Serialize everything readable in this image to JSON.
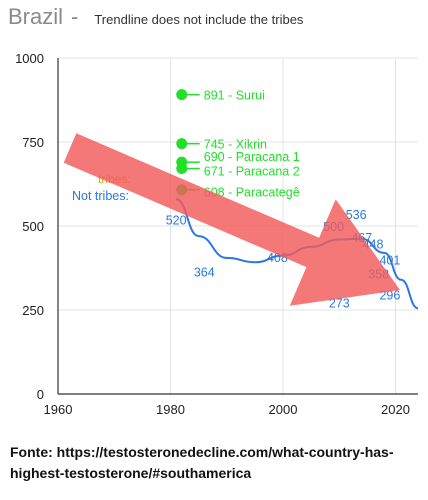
{
  "chart_data": {
    "type": "scatter",
    "title": "Brazil",
    "subtitle": "Trendline does not include the tribes",
    "xlim": [
      1960,
      2024
    ],
    "ylim": [
      0,
      1000
    ],
    "x_ticks": [
      1960,
      1980,
      2000,
      2020
    ],
    "y_ticks": [
      0,
      250,
      500,
      750,
      1000
    ],
    "grid": true,
    "series": [
      {
        "name": "tribes:",
        "color": "#22e02a",
        "points": [
          {
            "x": 1982,
            "y": 891,
            "label": "891 - Surui"
          },
          {
            "x": 1982,
            "y": 745,
            "label": "745 - Xikrin"
          },
          {
            "x": 1982,
            "y": 690,
            "label": "690 - Paracana 1"
          },
          {
            "x": 1982,
            "y": 671,
            "label": "671 - Paracana 2"
          },
          {
            "x": 1982,
            "y": 608,
            "label": "608 - Paracategê"
          }
        ]
      },
      {
        "name": "Not tribes:",
        "color": "#2a78e0",
        "points": [
          {
            "x": 1981,
            "y": 520,
            "label": "520"
          },
          {
            "x": 1986,
            "y": 364,
            "label": "364"
          },
          {
            "x": 1999,
            "y": 408,
            "label": "408"
          },
          {
            "x": 2009,
            "y": 500,
            "label": "500"
          },
          {
            "x": 2013,
            "y": 536,
            "label": "536"
          },
          {
            "x": 2014,
            "y": 467,
            "label": "467"
          },
          {
            "x": 2016,
            "y": 448,
            "label": "448"
          },
          {
            "x": 2019,
            "y": 401,
            "label": "401"
          },
          {
            "x": 2017,
            "y": 358,
            "label": "358"
          },
          {
            "x": 2010,
            "y": 273,
            "label": "273"
          },
          {
            "x": 2019,
            "y": 296,
            "label": "296"
          }
        ]
      }
    ],
    "trendline": {
      "color": "#2a78e0",
      "x": [
        1981,
        1985,
        1990,
        1995,
        2000,
        2005,
        2010,
        2014,
        2018,
        2021,
        2024
      ],
      "y": [
        580,
        470,
        405,
        392,
        412,
        438,
        460,
        462,
        420,
        340,
        255
      ]
    },
    "annotation_arrow": {
      "color": "#f25a5a"
    }
  },
  "source": "Fonte: https://testosteronedecline.com/what-country-has-highest-testosterone/#southamerica"
}
